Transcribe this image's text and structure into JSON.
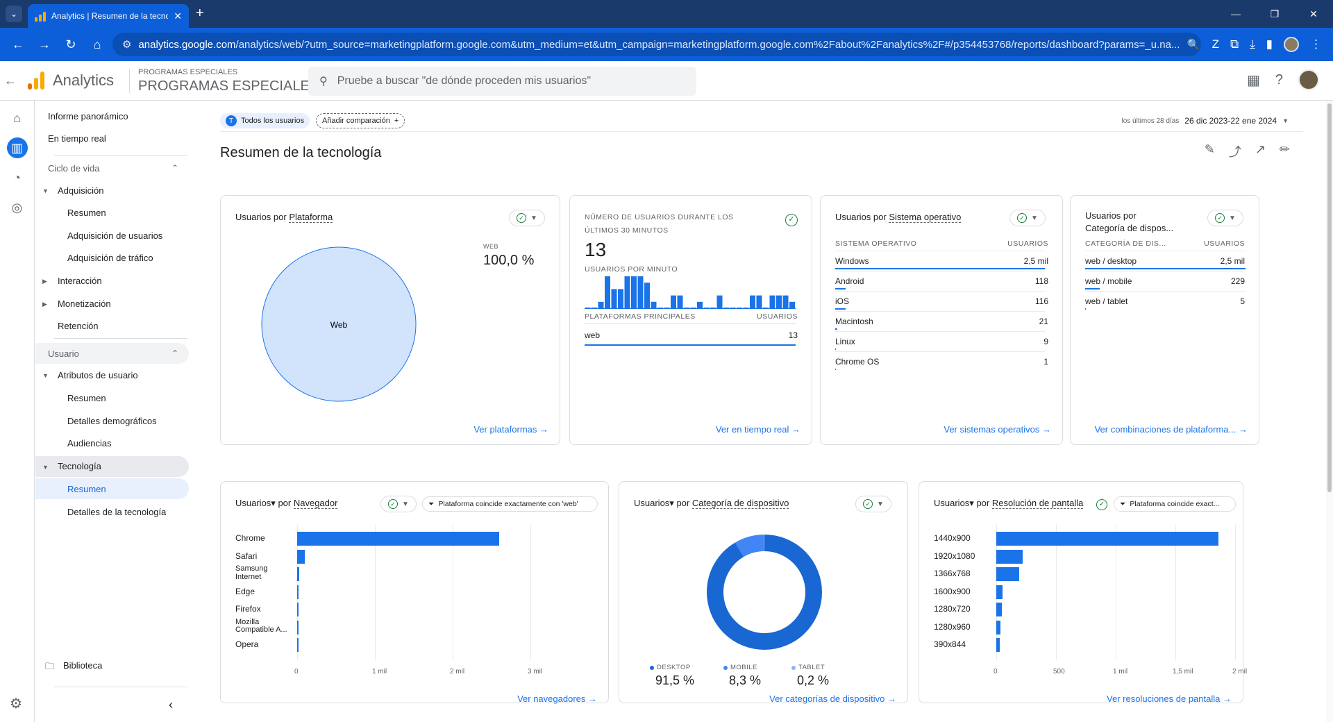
{
  "browser": {
    "tab_title": "Analytics | Resumen de la tecnología",
    "url_host": "analytics.google.com",
    "url_path": "/analytics/web/?utm_source=marketingplatform.google.com&utm_medium=et&utm_campaign=marketingplatform.google.com%2Fabout%2Fanalytics%2F#/p354453768/reports/dashboard?params=_u.na..."
  },
  "header": {
    "app_name": "Analytics",
    "property_small": "PROGRAMAS ESPECIALES",
    "property_big": "PROGRAMAS ESPECIALES",
    "search_placeholder": "Pruebe a buscar \"de dónde proceden mis usuarios\""
  },
  "nav": {
    "informe": "Informe panorámico",
    "tiempo_real": "En tiempo real",
    "ciclo": "Ciclo de vida",
    "adquisicion": "Adquisición",
    "resumen1": "Resumen",
    "adq_usuarios": "Adquisición de usuarios",
    "adq_trafico": "Adquisición de tráfico",
    "interaccion": "Interacción",
    "monetizacion": "Monetización",
    "retencion": "Retención",
    "usuario": "Usuario",
    "atributos": "Atributos de usuario",
    "resumen2": "Resumen",
    "demograficos": "Detalles demográficos",
    "audiencias": "Audiencias",
    "tecnologia": "Tecnología",
    "resumen3": "Resumen",
    "detalles_tec": "Detalles de la tecnología",
    "biblioteca": "Biblioteca"
  },
  "toolbar": {
    "segment_letter": "T",
    "segment": "Todos los usuarios",
    "add_comparison": "Añadir comparación",
    "date_label": "los últimos 28 días",
    "date_range": "26 dic 2023-22 ene 2024"
  },
  "page": {
    "title": "Resumen de la tecnología"
  },
  "card_platform": {
    "title_a": "Usuarios por ",
    "title_b": "Plataforma",
    "legend": "WEB",
    "value": "100,0 %",
    "pie_label": "Web",
    "link": "Ver plataformas"
  },
  "card_realtime": {
    "title": "NÚMERO DE USUARIOS DURANTE LOS ÚLTIMOS 30 MINUTOS",
    "value": "13",
    "sub": "USUARIOS POR MINUTO",
    "col1": "PLATAFORMAS PRINCIPALES",
    "col2": "USUARIOS",
    "rows": [
      {
        "name": "web",
        "value": "13"
      }
    ],
    "per_minute": [
      0,
      0,
      1,
      5,
      3,
      3,
      5,
      5,
      5,
      4,
      1,
      0,
      0,
      2,
      2,
      0,
      0,
      1,
      0,
      0,
      2,
      0,
      0,
      0,
      0,
      2,
      2,
      0,
      2,
      2,
      2,
      1
    ],
    "link": "Ver en tiempo real"
  },
  "card_os": {
    "title_a": "Usuarios",
    "title_b": " por ",
    "title_c": "Sistema operativo",
    "col1": "SISTEMA OPERATIVO",
    "col2": "USUARIOS",
    "rows": [
      {
        "name": "Windows",
        "value": "2,5 mil",
        "frac": 1
      },
      {
        "name": "Android",
        "value": "118",
        "frac": 0.05
      },
      {
        "name": "iOS",
        "value": "116",
        "frac": 0.05
      },
      {
        "name": "Macintosh",
        "value": "21",
        "frac": 0.01
      },
      {
        "name": "Linux",
        "value": "9",
        "frac": 0.004
      },
      {
        "name": "Chrome OS",
        "value": "1",
        "frac": 0.001
      }
    ],
    "link": "Ver sistemas operativos"
  },
  "card_device": {
    "title_a": "Usuarios",
    "title_b": " por",
    "title_c": "Categoría de dispos...",
    "col1": "CATEGORÍA DE DIS...",
    "col2": "USUARIOS",
    "rows": [
      {
        "name": "web / desktop",
        "value": "2,5 mil",
        "frac": 1
      },
      {
        "name": "web / mobile",
        "value": "229",
        "frac": 0.09
      },
      {
        "name": "web / tablet",
        "value": "5",
        "frac": 0.002
      }
    ],
    "link": "Ver combinaciones de plataforma..."
  },
  "card_browser": {
    "title_a": "Usuarios",
    "title_b": " por ",
    "title_c": "Navegador",
    "filter": "Plataforma coincide exactamente con 'web'",
    "link": "Ver navegadores"
  },
  "card_devcat": {
    "title_a": "Usuarios",
    "title_b": " por ",
    "title_c": "Categoría de dispositivo",
    "link": "Ver categorías de dispositivo",
    "legend": [
      {
        "name": "DESKTOP",
        "value": "91,5 %",
        "color": "#1967d2"
      },
      {
        "name": "MOBILE",
        "value": "8,3 %",
        "color": "#4285f4"
      },
      {
        "name": "TABLET",
        "value": "0,2 %",
        "color": "#8ab4f8"
      }
    ]
  },
  "card_res": {
    "title_a": "Usuarios",
    "title_b": " por ",
    "title_c": "Resolución de pantalla",
    "filter": "Plataforma coincide exact...",
    "link": "Ver resoluciones de pantalla"
  },
  "chart_data": [
    {
      "type": "pie",
      "title": "Usuarios por Plataforma",
      "categories": [
        "Web"
      ],
      "values": [
        100.0
      ]
    },
    {
      "type": "bar",
      "title": "Usuarios por Navegador",
      "categories": [
        "Chrome",
        "Safari",
        "Samsung Internet",
        "Edge",
        "Firefox",
        "Mozilla Compatible A...",
        "Opera"
      ],
      "values": [
        2600,
        100,
        25,
        20,
        5,
        3,
        1
      ],
      "xlim": [
        0,
        3000
      ],
      "xticks": [
        "0",
        "1 mil",
        "2 mil",
        "3 mil"
      ]
    },
    {
      "type": "pie",
      "title": "Usuarios por Categoría de dispositivo",
      "categories": [
        "DESKTOP",
        "MOBILE",
        "TABLET"
      ],
      "values": [
        91.5,
        8.3,
        0.2
      ]
    },
    {
      "type": "bar",
      "title": "Usuarios por Resolución de pantalla",
      "categories": [
        "1440x900",
        "1920x1080",
        "1366x768",
        "1600x900",
        "1280x720",
        "1280x960",
        "390x844"
      ],
      "values": [
        1860,
        220,
        190,
        50,
        45,
        35,
        30
      ],
      "xlim": [
        0,
        2000
      ],
      "xticks": [
        "0",
        "500",
        "1 mil",
        "1,5 mil",
        "2 mil"
      ]
    }
  ]
}
